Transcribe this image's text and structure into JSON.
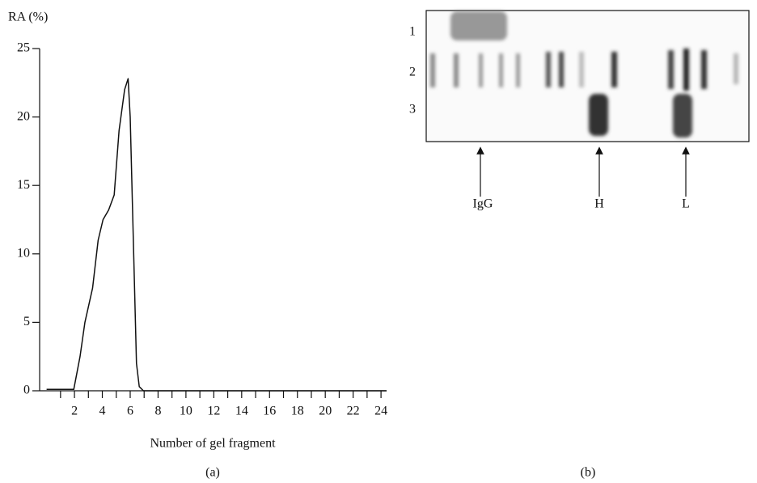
{
  "chart_data": {
    "type": "line",
    "y_label": "RA (%)",
    "x_label": "Number of gel fragment",
    "caption": "(a)",
    "x": [
      0,
      1.95,
      2.4,
      2.75,
      3.3,
      3.7,
      4.05,
      4.45,
      4.85,
      5.2,
      5.6,
      5.85,
      6.0,
      6.25,
      6.45,
      6.65,
      6.95,
      24.4
    ],
    "values": [
      0.1,
      0.1,
      2.5,
      5,
      7.5,
      11,
      12.5,
      13.2,
      14.3,
      19,
      22,
      22.8,
      20,
      10,
      2,
      0.3,
      0,
      0
    ],
    "color": "#111111",
    "xlim": [
      -0.5,
      24.4
    ],
    "xticks": [
      2,
      4,
      6,
      8,
      10,
      12,
      14,
      16,
      18,
      20,
      22,
      24
    ],
    "xminorticks": [
      1,
      3,
      5,
      7,
      9,
      11,
      13,
      15,
      17,
      19,
      21,
      23
    ],
    "ylim": [
      0,
      25
    ],
    "yticks": [
      0,
      5,
      10,
      15,
      20,
      25
    ],
    "grid": false
  },
  "gel": {
    "row_labels": [
      "1",
      "2",
      "3"
    ],
    "lane_labels": [
      "IgG",
      "H",
      "L"
    ],
    "caption": "(b)"
  }
}
